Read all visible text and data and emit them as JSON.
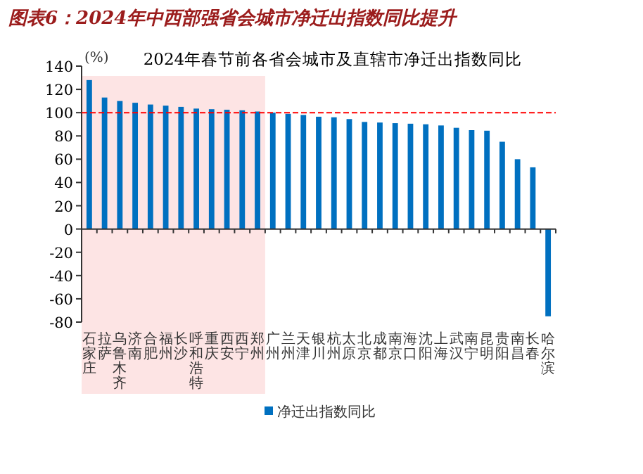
{
  "chart_data": {
    "type": "bar",
    "title": "图表6：2024年中西部强省会城市净迁出指数同比提升",
    "subtitle": "2024年春节前各省会城市及直辖市净迁出指数同比",
    "ylabel": "(%)",
    "categories": [
      "石家庄",
      "拉萨",
      "乌鲁木齐",
      "济南",
      "合肥",
      "福州",
      "长沙",
      "呼和浩特",
      "重庆",
      "西安",
      "西宁",
      "郑州",
      "广州",
      "兰州",
      "天津",
      "银川",
      "杭州",
      "太原",
      "北京",
      "成都",
      "南京",
      "海口",
      "沈阳",
      "上海",
      "武汉",
      "南宁",
      "昆明",
      "贵阳",
      "南昌",
      "长春",
      "哈尔滨"
    ],
    "series": [
      {
        "name": "净迁出指数同比",
        "color": "#0070c0",
        "values": [
          128,
          113,
          110,
          108.5,
          107,
          106,
          105,
          103.5,
          103,
          102.5,
          102,
          101,
          100,
          99,
          98,
          96.5,
          96,
          94.5,
          92,
          91.5,
          91,
          90.5,
          90,
          89,
          87,
          85,
          84.5,
          75,
          60,
          53,
          -75
        ]
      }
    ],
    "ylim": [
      -80,
      140
    ],
    "yticks": [
      -80,
      -60,
      -40,
      -20,
      0,
      20,
      40,
      60,
      80,
      100,
      120,
      140
    ],
    "ref_lines": [
      {
        "axis": "y",
        "value": 100,
        "color": "#ff0000",
        "line_style": "dashed"
      }
    ],
    "bands": [
      {
        "axis": "x",
        "from": "石家庄",
        "to": "郑州",
        "color": "#fde4e4"
      }
    ],
    "grid": false,
    "legend": "bottom"
  }
}
